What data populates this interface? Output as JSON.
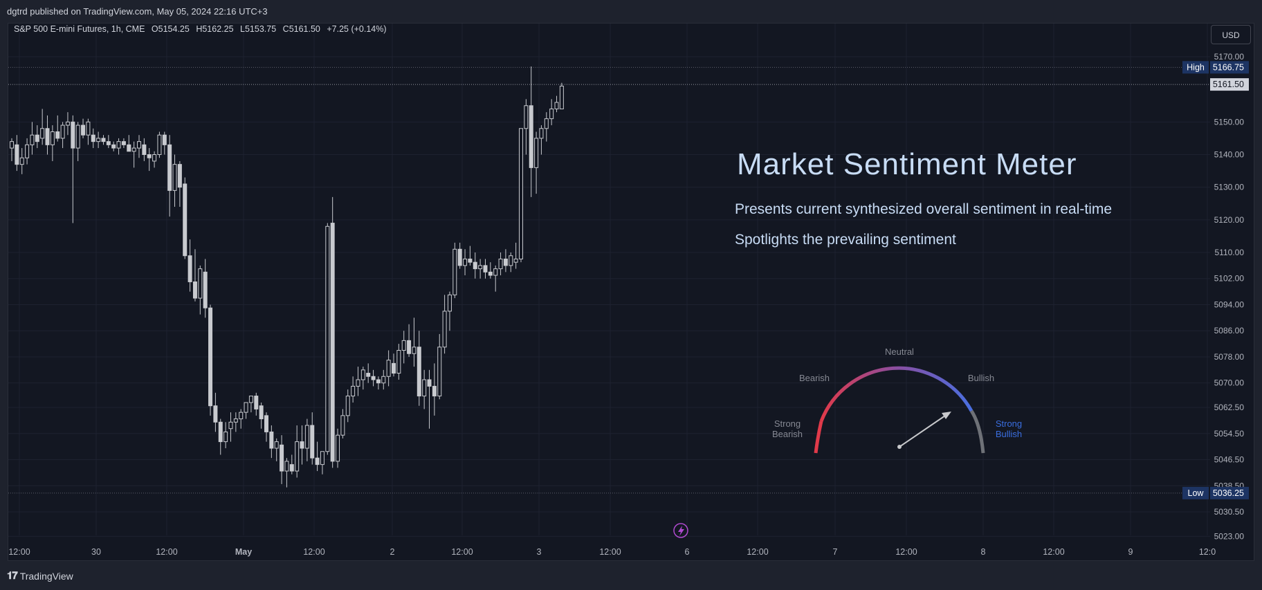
{
  "publisher_line": "dgtrd published on TradingView.com, May 05, 2024 22:16 UTC+3",
  "legend": {
    "symbol": "S&P 500 E-mini Futures, 1h, CME",
    "o_label": "O",
    "o_value": "5154.25",
    "h_label": "H",
    "h_value": "5162.25",
    "l_label": "L",
    "l_value": "5153.75",
    "c_label": "C",
    "c_value": "5161.50",
    "change": "+7.25 (+0.14%)"
  },
  "currency_button": "USD",
  "brand": "TradingView",
  "overlay": {
    "title": "Market Sentiment Meter",
    "line1": "Presents current synthesized overall sentiment in real-time",
    "line2": "Spotlights the prevailing sentiment"
  },
  "gauge": {
    "labels": {
      "neutral": "Neutral",
      "bearish": "Bearish",
      "bullish": "Bullish",
      "strong_bearish_1": "Strong",
      "strong_bearish_2": "Bearish",
      "strong_bullish_1": "Strong",
      "strong_bullish_2": "Bullish"
    },
    "colors": {
      "strong_bearish": "#e03a4a",
      "neutral": "#8a4ea0",
      "bullish": "#4a6fe0",
      "strong_bullish_text": "#3a6ee0",
      "grey_end": "#6e7177",
      "needle": "#c8c9cc"
    },
    "needle_reading": "Bullish"
  },
  "colors": {
    "background": "#131722",
    "candle": "#c8cacf",
    "grid": "#1e2230",
    "text": "#d1d4dc",
    "axis_text": "#b2b5be",
    "high_low_label_bg": "#1d3463",
    "last_price_bg": "#d1d4dc",
    "title_color": "#c8dcf5",
    "event_icon": "#b04ad0"
  },
  "chart_data": {
    "type": "candlestick",
    "title": "S&P 500 E-mini Futures, 1h, CME",
    "ylim": [
      5020,
      5175
    ],
    "y_ticks": [
      "5170.00",
      "5150.00",
      "5140.00",
      "5130.00",
      "5120.00",
      "5110.00",
      "5102.00",
      "5094.00",
      "5086.00",
      "5078.00",
      "5070.00",
      "5062.50",
      "5054.50",
      "5046.50",
      "5038.50",
      "5030.50",
      "5023.00"
    ],
    "x_ticks": [
      "12:00",
      "30",
      "12:00",
      "May",
      "12:00",
      "2",
      "12:00",
      "3",
      "12:00",
      "6",
      "12:00",
      "7",
      "12:00",
      "8",
      "12:00",
      "9",
      "12:0"
    ],
    "high_label": "High",
    "high_value": "5166.75",
    "low_label": "Low",
    "low_value": "5036.25",
    "last_value": "5161.50",
    "candles": [
      [
        5142,
        5145,
        5138,
        5144
      ],
      [
        5143,
        5146,
        5135,
        5137
      ],
      [
        5137,
        5142,
        5134,
        5139
      ],
      [
        5139,
        5145,
        5137,
        5143
      ],
      [
        5143,
        5150,
        5140,
        5146
      ],
      [
        5146,
        5149,
        5142,
        5144
      ],
      [
        5145,
        5154,
        5143,
        5148
      ],
      [
        5148,
        5152,
        5140,
        5143
      ],
      [
        5143,
        5149,
        5138,
        5147
      ],
      [
        5147,
        5152,
        5144,
        5145
      ],
      [
        5145,
        5150,
        5142,
        5149
      ],
      [
        5149,
        5153,
        5146,
        5150
      ],
      [
        5150,
        5152,
        5119,
        5142
      ],
      [
        5142,
        5150,
        5138,
        5149
      ],
      [
        5149,
        5151,
        5145,
        5146
      ],
      [
        5146,
        5151,
        5143,
        5150
      ],
      [
        5146,
        5148,
        5142,
        5144
      ],
      [
        5144,
        5147,
        5142,
        5145
      ],
      [
        5145,
        5146,
        5143,
        5144
      ],
      [
        5144,
        5146,
        5142,
        5143
      ],
      [
        5143,
        5144,
        5141,
        5142
      ],
      [
        5142,
        5145,
        5140,
        5144
      ],
      [
        5144,
        5145,
        5142,
        5143
      ],
      [
        5143,
        5146,
        5141,
        5141
      ],
      [
        5141,
        5144,
        5136,
        5142
      ],
      [
        5142,
        5146,
        5139,
        5144
      ],
      [
        5143,
        5145,
        5138,
        5140
      ],
      [
        5140,
        5142,
        5135,
        5139
      ],
      [
        5138,
        5141,
        5136,
        5140
      ],
      [
        5140,
        5147,
        5139,
        5146
      ],
      [
        5146,
        5147,
        5140,
        5143
      ],
      [
        5143,
        5146,
        5121,
        5129
      ],
      [
        5129,
        5140,
        5124,
        5137
      ],
      [
        5137,
        5138,
        5124,
        5130
      ],
      [
        5131,
        5133,
        5108,
        5109
      ],
      [
        5109,
        5114,
        5098,
        5101
      ],
      [
        5101,
        5111,
        5095,
        5096
      ],
      [
        5096,
        5106,
        5091,
        5105
      ],
      [
        5104,
        5108,
        5090,
        5093
      ],
      [
        5093,
        5094,
        5060,
        5063
      ],
      [
        5063,
        5067,
        5055,
        5058
      ],
      [
        5058,
        5059,
        5048,
        5052
      ],
      [
        5052,
        5058,
        5050,
        5055
      ],
      [
        5056,
        5061,
        5052,
        5058
      ],
      [
        5058,
        5061,
        5055,
        5059
      ],
      [
        5059,
        5062,
        5056,
        5061
      ],
      [
        5061,
        5064,
        5059,
        5064
      ],
      [
        5064,
        5066,
        5061,
        5066
      ],
      [
        5066,
        5067,
        5060,
        5062
      ],
      [
        5063,
        5064,
        5056,
        5059
      ],
      [
        5060,
        5061,
        5052,
        5055
      ],
      [
        5055,
        5057,
        5047,
        5050
      ],
      [
        5050,
        5053,
        5046,
        5052
      ],
      [
        5051,
        5054,
        5039,
        5043
      ],
      [
        5043,
        5047,
        5038,
        5046
      ],
      [
        5045,
        5048,
        5042,
        5043
      ],
      [
        5043,
        5057,
        5041,
        5052
      ],
      [
        5052,
        5057,
        5045,
        5050
      ],
      [
        5050,
        5059,
        5046,
        5057
      ],
      [
        5057,
        5061,
        5045,
        5047
      ],
      [
        5047,
        5052,
        5043,
        5045
      ],
      [
        5045,
        5049,
        5042,
        5049
      ],
      [
        5049,
        5119,
        5048,
        5118
      ],
      [
        5119,
        5127,
        5044,
        5046
      ],
      [
        5046,
        5056,
        5044,
        5054
      ],
      [
        5054,
        5062,
        5053,
        5060
      ],
      [
        5060,
        5068,
        5058,
        5066
      ],
      [
        5066,
        5072,
        5064,
        5069
      ],
      [
        5069,
        5075,
        5066,
        5071
      ],
      [
        5071,
        5075,
        5068,
        5074
      ],
      [
        5073,
        5076,
        5070,
        5072
      ],
      [
        5072,
        5074,
        5069,
        5071
      ],
      [
        5071,
        5072,
        5068,
        5070
      ],
      [
        5070,
        5074,
        5068,
        5072
      ],
      [
        5072,
        5080,
        5069,
        5077
      ],
      [
        5076,
        5079,
        5072,
        5073
      ],
      [
        5073,
        5082,
        5071,
        5080
      ],
      [
        5080,
        5086,
        5076,
        5083
      ],
      [
        5083,
        5088,
        5078,
        5079
      ],
      [
        5079,
        5090,
        5075,
        5081
      ],
      [
        5081,
        5086,
        5063,
        5066
      ],
      [
        5066,
        5074,
        5062,
        5071
      ],
      [
        5071,
        5074,
        5056,
        5069
      ],
      [
        5069,
        5076,
        5060,
        5066
      ],
      [
        5066,
        5085,
        5065,
        5081
      ],
      [
        5081,
        5097,
        5079,
        5092
      ],
      [
        5092,
        5098,
        5086,
        5097
      ],
      [
        5097,
        5113,
        5096,
        5111
      ],
      [
        5111,
        5113,
        5105,
        5106
      ],
      [
        5106,
        5111,
        5103,
        5108
      ],
      [
        5108,
        5112,
        5106,
        5107
      ],
      [
        5107,
        5110,
        5102,
        5105
      ],
      [
        5105,
        5108,
        5102,
        5106
      ],
      [
        5106,
        5108,
        5102,
        5104
      ],
      [
        5104,
        5107,
        5102,
        5103
      ],
      [
        5103,
        5106,
        5098,
        5105
      ],
      [
        5105,
        5110,
        5103,
        5108
      ],
      [
        5108,
        5111,
        5104,
        5106
      ],
      [
        5106,
        5110,
        5104,
        5109
      ],
      [
        5107,
        5113,
        5105,
        5108
      ],
      [
        5108,
        5147,
        5107,
        5148
      ],
      [
        5148,
        5157,
        5140,
        5155
      ],
      [
        5155,
        5167,
        5127,
        5136
      ],
      [
        5136,
        5147,
        5128,
        5145
      ],
      [
        5145,
        5149,
        5140,
        5148
      ],
      [
        5148,
        5153,
        5144,
        5151
      ],
      [
        5151,
        5157,
        5149,
        5154
      ],
      [
        5154,
        5158,
        5153,
        5156
      ],
      [
        5154,
        5162,
        5154,
        5161
      ]
    ]
  }
}
